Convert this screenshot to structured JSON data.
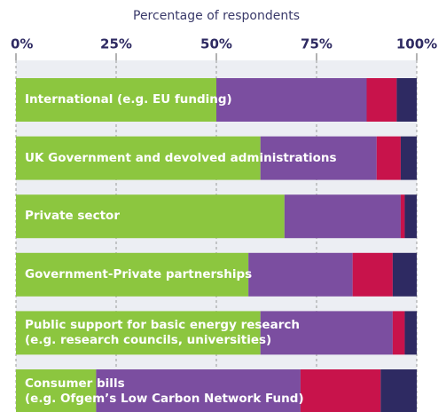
{
  "chart_data": {
    "type": "stacked-bar-horizontal",
    "xlabel": "Percentage of respondents",
    "categories": [
      "International (e.g. EU funding)",
      "UK Government and devolved administrations",
      "Private sector",
      "Government-Private partnerships",
      "Public support for basic energy research\n(e.g. research councils, universities)",
      "Consumer bills\n(e.g. Ofgem’s Low Carbon Network Fund)"
    ],
    "series": [
      {
        "color": "#8cc63f",
        "values": [
          50,
          61,
          67,
          58,
          61,
          20
        ]
      },
      {
        "color": "#7b4ea0",
        "values": [
          37.5,
          29,
          29,
          26,
          33,
          51
        ]
      },
      {
        "color": "#c8134b",
        "values": [
          7.5,
          6,
          1,
          10,
          3,
          20
        ]
      },
      {
        "color": "#2e2a62",
        "values": [
          5,
          4,
          3,
          6,
          3,
          9
        ]
      }
    ],
    "xlim": [
      0,
      100
    ],
    "xticks": [
      {
        "value": 0,
        "label": "0%"
      },
      {
        "value": 25,
        "label": "25%"
      },
      {
        "value": 50,
        "label": "50%"
      },
      {
        "value": 75,
        "label": "75%"
      },
      {
        "value": 100,
        "label": "100%"
      }
    ],
    "grid": true
  }
}
